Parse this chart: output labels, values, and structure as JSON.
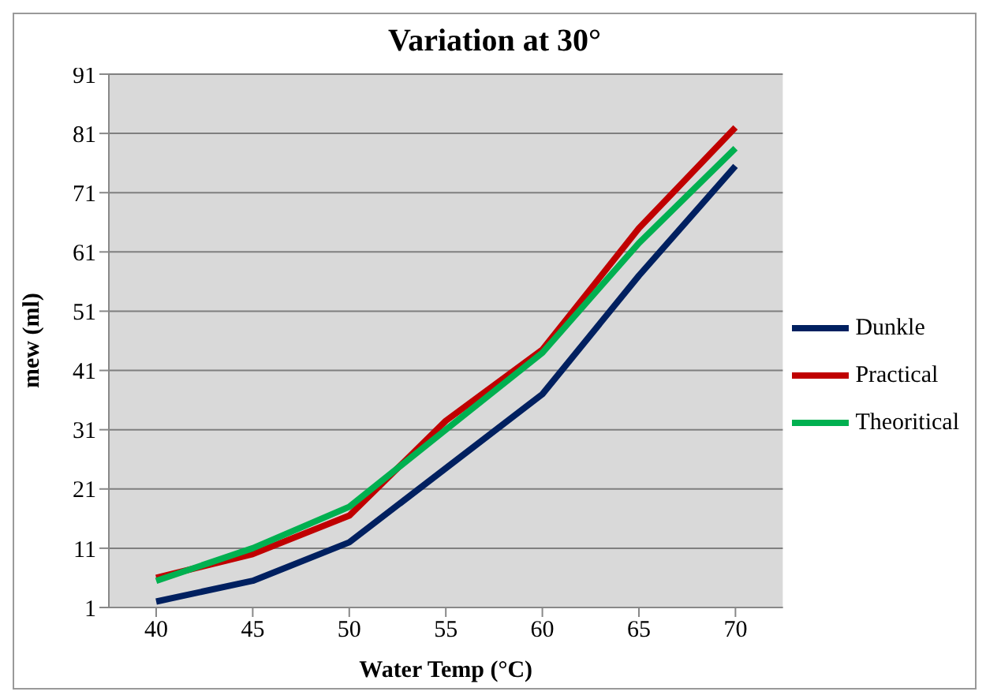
{
  "chart_data": {
    "type": "line",
    "title": "Variation  at 30°",
    "xlabel": "Water Temp (°C)",
    "ylabel": "mew (ml)",
    "categories": [
      "40",
      "45",
      "50",
      "55",
      "60",
      "65",
      "70"
    ],
    "series": [
      {
        "name": "Dunkle",
        "color": "#002060",
        "values": [
          2,
          5.5,
          12,
          24.5,
          37,
          57,
          75.5
        ]
      },
      {
        "name": "Practical",
        "color": "#c00000",
        "values": [
          6,
          10,
          16.5,
          32.5,
          44.5,
          65,
          82
        ]
      },
      {
        "name": "Theoritical",
        "color": "#00b050",
        "values": [
          5.5,
          11,
          18,
          31,
          44,
          62.5,
          78.5
        ]
      }
    ],
    "ylim": [
      1,
      91
    ],
    "yticks": [
      1,
      11,
      21,
      31,
      41,
      51,
      61,
      71,
      81,
      91
    ],
    "grid": "y",
    "legend": "right",
    "marker": "none",
    "line_style": "solid"
  }
}
